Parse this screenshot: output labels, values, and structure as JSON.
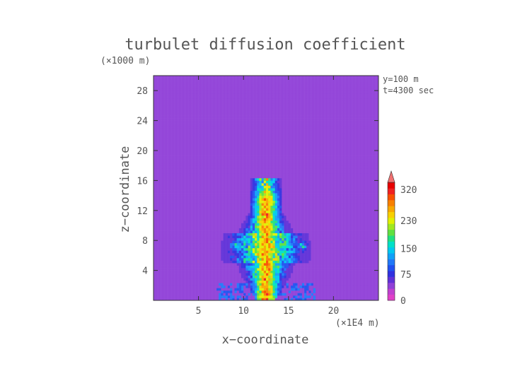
{
  "chart_data": {
    "type": "heatmap",
    "title": "turbulet diffusion coefficient",
    "xlabel": "x−coordinate",
    "ylabel": "z−coordinate",
    "x_unit": "(×1E4 m)",
    "y_unit": "(×1000 m)",
    "annotations": [
      "y=100 m",
      "t=4300 sec"
    ],
    "xlim": [
      0,
      25
    ],
    "ylim": [
      0,
      30
    ],
    "x_ticks": [
      5,
      10,
      15,
      20
    ],
    "y_ticks": [
      4,
      8,
      12,
      16,
      20,
      24,
      28
    ],
    "colorbar": {
      "min": 0,
      "max": 340,
      "tick_values": [
        0,
        75,
        150,
        230,
        320
      ],
      "extend": "max",
      "levels": [
        {
          "from": 0,
          "to": 20,
          "color": "#e040c8"
        },
        {
          "from": 20,
          "to": 40,
          "color": "#c040d0"
        },
        {
          "from": 40,
          "to": 60,
          "color": "#9040d8"
        },
        {
          "from": 60,
          "to": 75,
          "color": "#6030d8"
        },
        {
          "from": 75,
          "to": 90,
          "color": "#3030e0"
        },
        {
          "from": 90,
          "to": 105,
          "color": "#2050f0"
        },
        {
          "from": 105,
          "to": 120,
          "color": "#2078f8"
        },
        {
          "from": 120,
          "to": 135,
          "color": "#10a0f8"
        },
        {
          "from": 135,
          "to": 150,
          "color": "#00c8f0"
        },
        {
          "from": 150,
          "to": 165,
          "color": "#00e0c8"
        },
        {
          "from": 165,
          "to": 180,
          "color": "#20e080"
        },
        {
          "from": 180,
          "to": 195,
          "color": "#60e040"
        },
        {
          "from": 195,
          "to": 210,
          "color": "#a0e820"
        },
        {
          "from": 210,
          "to": 230,
          "color": "#e0f000"
        },
        {
          "from": 230,
          "to": 250,
          "color": "#f8d000"
        },
        {
          "from": 250,
          "to": 270,
          "color": "#f8a800"
        },
        {
          "from": 270,
          "to": 290,
          "color": "#f88000"
        },
        {
          "from": 290,
          "to": 310,
          "color": "#f85000"
        },
        {
          "from": 310,
          "to": 320,
          "color": "#f02020"
        },
        {
          "from": 320,
          "to": 340,
          "color": "#e80000"
        }
      ]
    },
    "background_value": 10,
    "regions": [
      {
        "desc": "boundary layer band",
        "x": [
          0,
          25
        ],
        "z": [
          1.5,
          5.5
        ],
        "value": 35
      },
      {
        "desc": "plume core",
        "x_center": 12.5,
        "z_top": 16.5,
        "peak_value": 320
      }
    ]
  }
}
